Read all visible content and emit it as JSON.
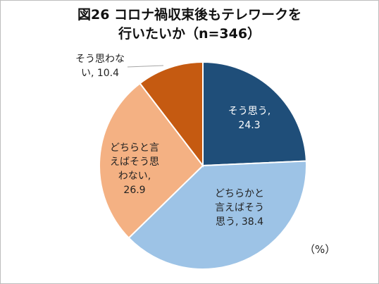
{
  "chart_data": {
    "type": "pie",
    "title_lines": [
      "図26 コロナ禍収束後もテレワークを",
      "行いたいか（n=346）"
    ],
    "unit": "（%）",
    "slices": [
      {
        "name": "そう思う",
        "value": 24.3,
        "color": "#1f4e79",
        "text_color": "#ffffff",
        "label_lines": [
          "そう思う,",
          "24.3"
        ]
      },
      {
        "name": "どちらかと言えばそう思う",
        "value": 38.4,
        "color": "#9dc3e6",
        "text_color": "#222222",
        "label_lines": [
          "どちらかと",
          "言えばそう",
          "思う, 38.4"
        ]
      },
      {
        "name": "どちらと言えばそう思わない",
        "value": 26.9,
        "color": "#f4b183",
        "text_color": "#222222",
        "label_lines": [
          "どちらと言",
          "えばそう思",
          "わない,",
          "26.9"
        ]
      },
      {
        "name": "そう思わない",
        "value": 10.4,
        "color": "#c55a11",
        "text_color": "#222222",
        "label_lines": [
          "そう思わな",
          "い, 10.4"
        ]
      }
    ]
  }
}
